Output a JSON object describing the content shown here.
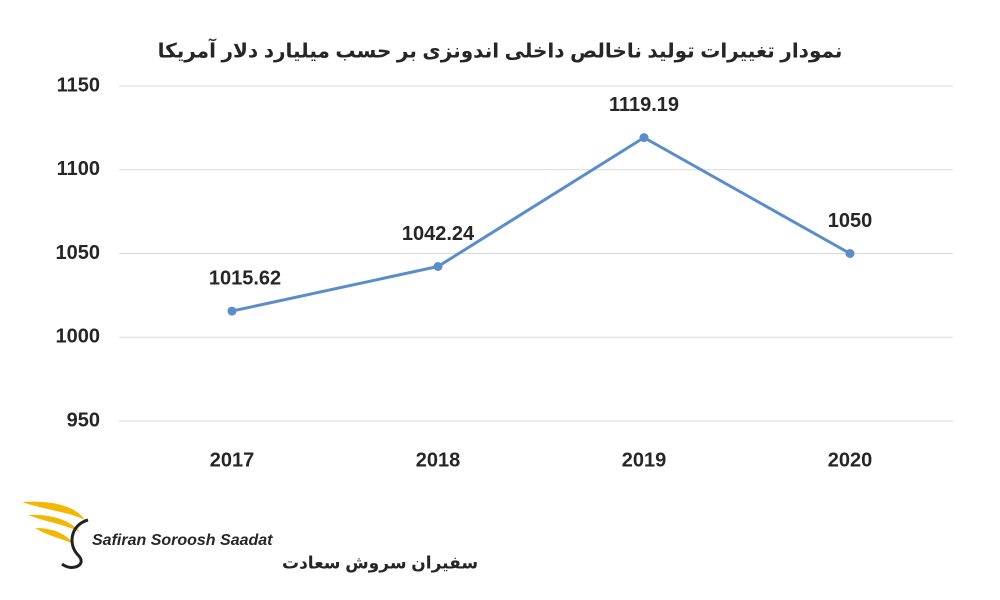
{
  "chart_data": {
    "type": "line",
    "title": "نمودار تغییرات تولید ناخالص داخلی اندونزی بر حسب میلیارد دلار آمریکا",
    "categories": [
      "2017",
      "2018",
      "2019",
      "2020"
    ],
    "series": [
      {
        "name": "GDP",
        "color": "#5b8ec8",
        "values": [
          1015.62,
          1042.24,
          1119.19,
          1050
        ]
      }
    ],
    "ylim": [
      950,
      1150
    ],
    "yticks": [
      950,
      1000,
      1050,
      1100,
      1150
    ],
    "grid": true,
    "data_labels": true
  },
  "logo": {
    "name": "Safiran Soroosh Saadat",
    "name_fa": "سفیران سروش سعادت"
  }
}
